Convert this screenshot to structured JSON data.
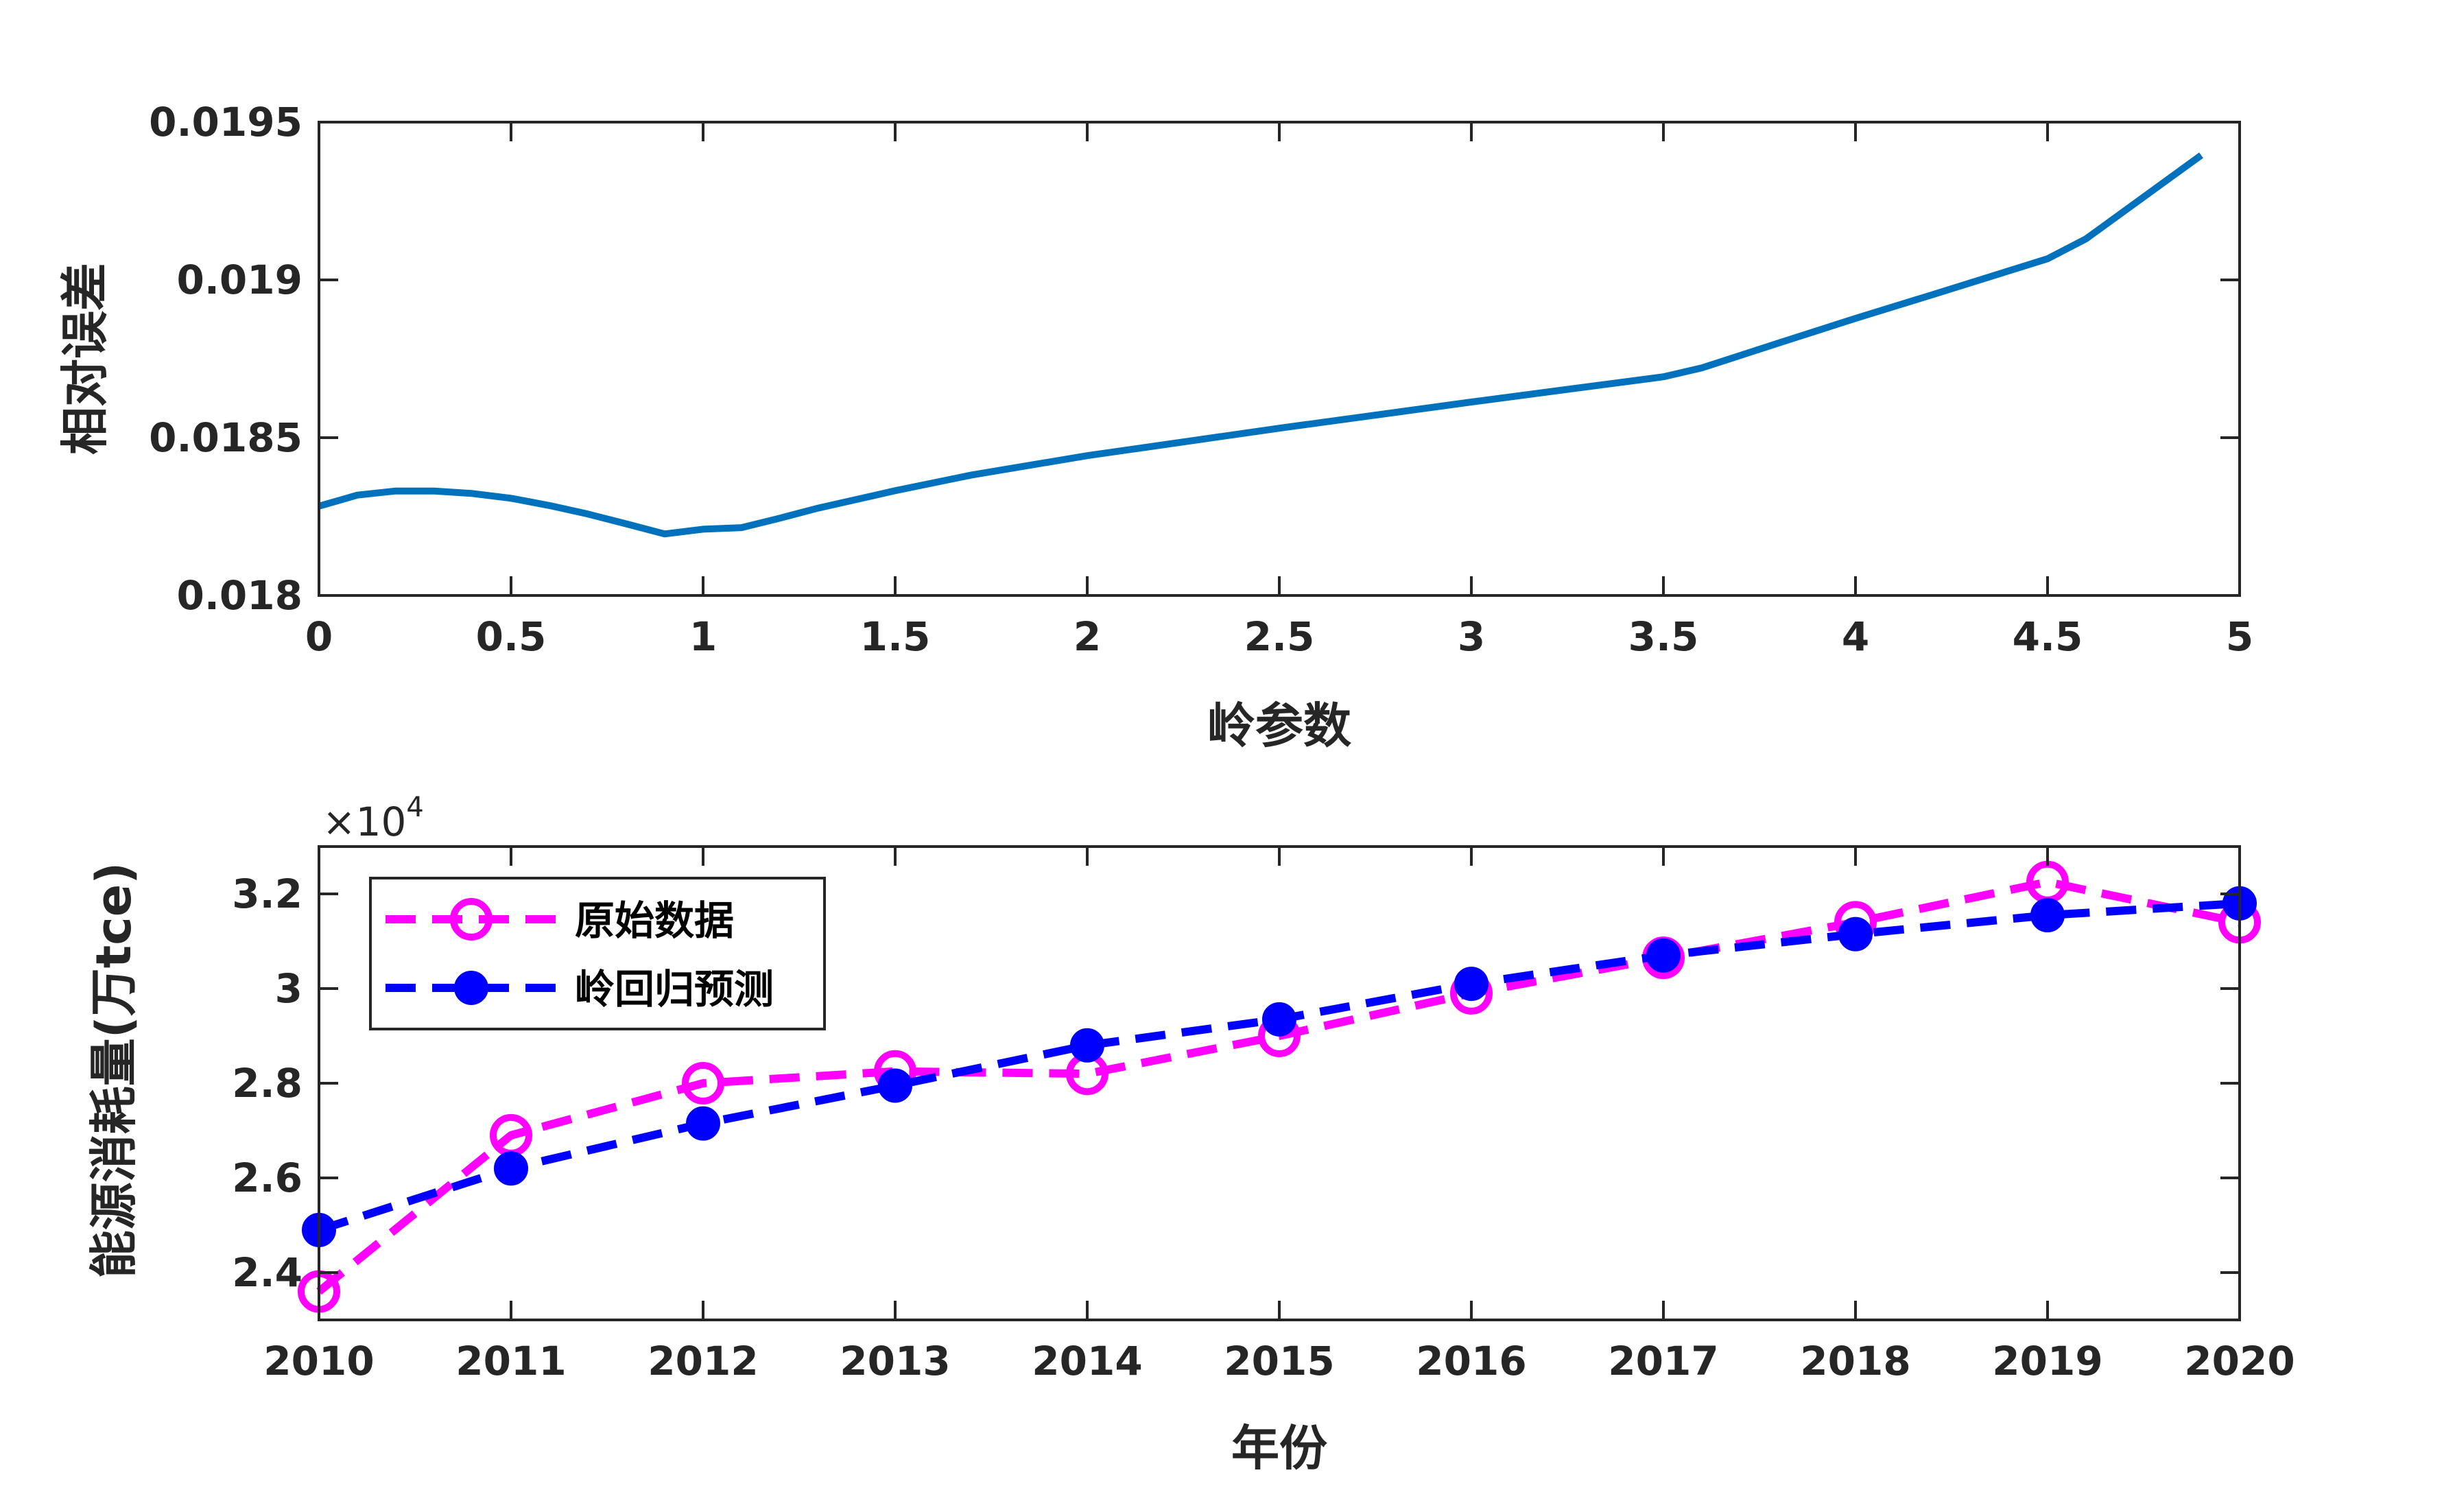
{
  "chart_data": [
    {
      "type": "line",
      "title": "",
      "xlabel": "岭参数",
      "ylabel": "相对误差",
      "xlim": [
        0,
        5
      ],
      "ylim": [
        0.018,
        0.0195
      ],
      "xticks": [
        0,
        0.5,
        1,
        1.5,
        2,
        2.5,
        3,
        3.5,
        4,
        4.5,
        5
      ],
      "xtick_labels": [
        "0",
        "0.5",
        "1",
        "1.5",
        "2",
        "2.5",
        "3",
        "3.5",
        "4",
        "4.5",
        "5"
      ],
      "yticks": [
        0.018,
        0.0185,
        0.019,
        0.0195
      ],
      "ytick_labels": [
        "0.018",
        "0.0185",
        "0.019",
        "0.0195"
      ],
      "grid": false,
      "series": [
        {
          "color": "#0072bd",
          "x": [
            0,
            0.1,
            0.2,
            0.3,
            0.4,
            0.5,
            0.6,
            0.7,
            0.8,
            0.9,
            1.0,
            1.1,
            1.2,
            1.3,
            1.5,
            1.7,
            2.0,
            2.5,
            3.0,
            3.5,
            3.6,
            3.8,
            4.0,
            4.2,
            4.5,
            4.6,
            4.9
          ],
          "y": [
            0.018283,
            0.018318,
            0.018331,
            0.018331,
            0.018323,
            0.018308,
            0.018285,
            0.018258,
            0.018227,
            0.018195,
            0.01821,
            0.018215,
            0.018245,
            0.018277,
            0.018332,
            0.018382,
            0.018443,
            0.01853,
            0.018613,
            0.018693,
            0.018721,
            0.0188,
            0.018878,
            0.018953,
            0.019067,
            0.01913,
            0.019395
          ]
        }
      ]
    },
    {
      "type": "line",
      "title": "",
      "xlabel": "年份",
      "ylabel": "能源消耗量(万tce)",
      "exponent_base": "×10",
      "exponent_power": "4",
      "xlim": [
        2010,
        2020
      ],
      "ylim": [
        2.3,
        3.3
      ],
      "xticks": [
        2010,
        2011,
        2012,
        2013,
        2014,
        2015,
        2016,
        2017,
        2018,
        2019,
        2020
      ],
      "xtick_labels": [
        "2010",
        "2011",
        "2012",
        "2013",
        "2014",
        "2015",
        "2016",
        "2017",
        "2018",
        "2019",
        "2020"
      ],
      "yticks": [
        2.4,
        2.6,
        2.8,
        3.0,
        3.2
      ],
      "ytick_labels": [
        "2.4",
        "2.6",
        "2.8",
        "3",
        "3.2"
      ],
      "grid": false,
      "legend_position": "top-left",
      "x": [
        2010,
        2011,
        2012,
        2013,
        2014,
        2015,
        2016,
        2017,
        2018,
        2019,
        2020
      ],
      "series": [
        {
          "name": "原始数据",
          "color": "#ff00ff",
          "marker": "open-circle",
          "line_style": "dashed",
          "values": [
            2.36,
            2.69,
            2.8,
            2.825,
            2.82,
            2.9,
            2.99,
            3.065,
            3.14,
            3.225,
            3.14
          ]
        },
        {
          "name": "岭回归预测",
          "color": "#0000ff",
          "marker": "filled-circle",
          "line_style": "dashed",
          "values": [
            2.49,
            2.62,
            2.715,
            2.795,
            2.88,
            2.935,
            3.01,
            3.07,
            3.115,
            3.155,
            3.18
          ]
        }
      ]
    }
  ]
}
